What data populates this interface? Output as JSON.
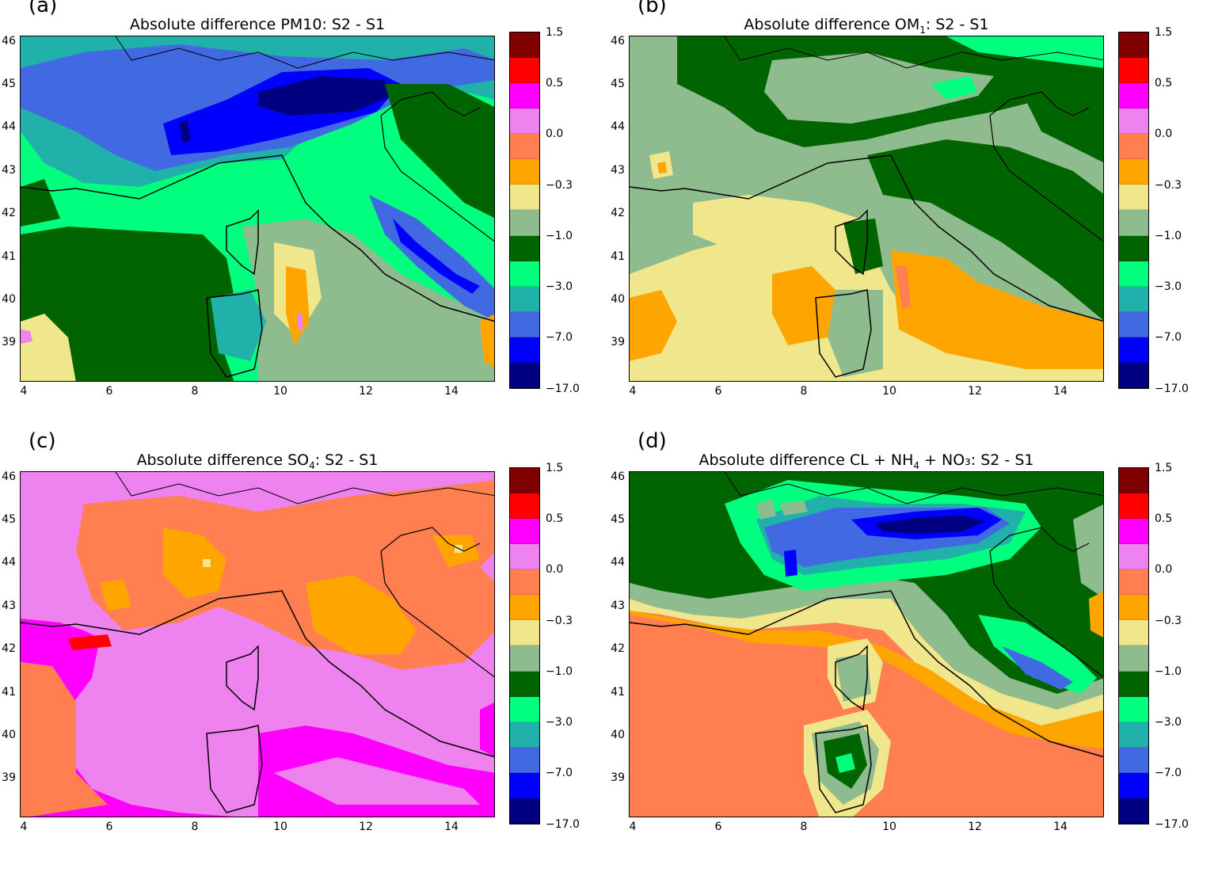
{
  "panels": [
    {
      "letter": "(a)",
      "title_pre": "Absolute difference PM10:  S2 - S1",
      "title_sub": "",
      "title_post": ""
    },
    {
      "letter": "(b)",
      "title_pre": "Absolute difference OM",
      "title_sub": "1",
      "title_post": ":  S2 - S1"
    },
    {
      "letter": "(c)",
      "title_pre": "Absolute difference SO",
      "title_sub": "4",
      "title_post": ":  S2 - S1"
    },
    {
      "letter": "(d)",
      "title_pre": "Absolute difference  CL + NH",
      "title_sub": "4",
      "title_post": " + NO₃: S2 - S1"
    }
  ],
  "axes": {
    "x_ticks": [
      "4",
      "6",
      "8",
      "10",
      "12",
      "14"
    ],
    "y_ticks": [
      "46",
      "45",
      "44",
      "43",
      "42",
      "41",
      "40",
      "39"
    ]
  },
  "colorbar": {
    "labels": [
      "1.5",
      "0.5",
      "0.0",
      "−0.3",
      "−1.0",
      "−3.0",
      "−7.0",
      "−17.0"
    ],
    "colors_top_to_bottom": [
      "#800000",
      "#ff0000",
      "#ff00ff",
      "#ee82ee",
      "#ff7f50",
      "#ffa500",
      "#f0e68c",
      "#8fbc8f",
      "#006400",
      "#00ff7f",
      "#20b2aa",
      "#4169e1",
      "#0000ff",
      "#000080"
    ]
  },
  "chart_data": [
    {
      "type": "heatmap",
      "title": "Absolute difference PM10:  S2 - S1",
      "xlim": [
        3.9,
        15
      ],
      "ylim": [
        38.9,
        46.9
      ],
      "x_ticks": [
        4,
        6,
        8,
        10,
        12,
        14
      ],
      "y_ticks": [
        39,
        40,
        41,
        42,
        43,
        44,
        45,
        46
      ],
      "color_levels": [
        -17.0,
        -7.0,
        -3.0,
        -1.0,
        -0.3,
        0.0,
        0.5,
        1.5
      ],
      "dominant_range": "-17.0 to -1.0"
    },
    {
      "type": "heatmap",
      "title": "Absolute difference OM1:  S2 - S1",
      "xlim": [
        3.9,
        15
      ],
      "ylim": [
        38.9,
        46.9
      ],
      "x_ticks": [
        4,
        6,
        8,
        10,
        12,
        14
      ],
      "y_ticks": [
        39,
        40,
        41,
        42,
        43,
        44,
        45,
        46
      ],
      "color_levels": [
        -17.0,
        -7.0,
        -3.0,
        -1.0,
        -0.3,
        0.0,
        0.5,
        1.5
      ],
      "dominant_range": "-3.0 to 0.0"
    },
    {
      "type": "heatmap",
      "title": "Absolute difference SO4:  S2 - S1",
      "xlim": [
        3.9,
        15
      ],
      "ylim": [
        38.9,
        46.9
      ],
      "x_ticks": [
        4,
        6,
        8,
        10,
        12,
        14
      ],
      "y_ticks": [
        39,
        40,
        41,
        42,
        43,
        44,
        45,
        46
      ],
      "color_levels": [
        -17.0,
        -7.0,
        -3.0,
        -1.0,
        -0.3,
        0.0,
        0.5,
        1.5
      ],
      "dominant_range": "-0.3 to 1.5"
    },
    {
      "type": "heatmap",
      "title": "Absolute difference  CL + NH4 + NO3: S2 - S1",
      "xlim": [
        3.9,
        15
      ],
      "ylim": [
        38.9,
        46.9
      ],
      "x_ticks": [
        4,
        6,
        8,
        10,
        12,
        14
      ],
      "y_ticks": [
        39,
        40,
        41,
        42,
        43,
        44,
        45,
        46
      ],
      "color_levels": [
        -17.0,
        -7.0,
        -3.0,
        -1.0,
        -0.3,
        0.0,
        0.5,
        1.5
      ],
      "dominant_range": "-17.0 to 0.0"
    }
  ]
}
